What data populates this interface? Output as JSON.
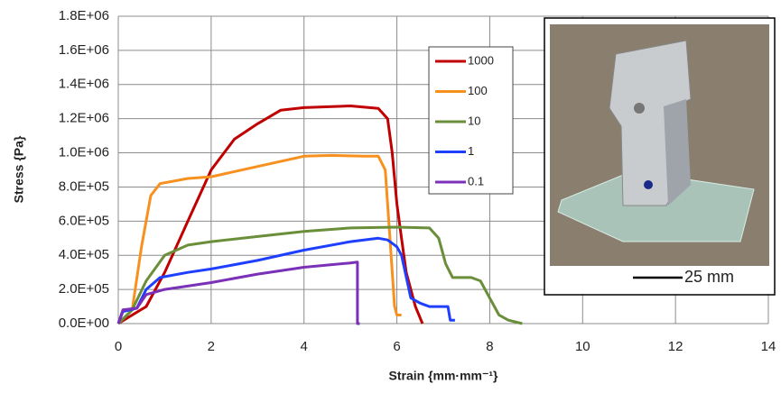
{
  "chart_data": {
    "type": "line",
    "x_label": "Strain {mm·mm⁻¹}",
    "y_label": "Stress {Pa}",
    "xlim": [
      0,
      14
    ],
    "xticks": [
      0,
      2,
      4,
      6,
      8,
      10,
      12,
      14
    ],
    "ylim": [
      0,
      1800000
    ],
    "yticks": [
      {
        "value": 0,
        "label": "0.0E+00"
      },
      {
        "value": 200000,
        "label": "2.0E+05"
      },
      {
        "value": 400000,
        "label": "4.0E+05"
      },
      {
        "value": 600000,
        "label": "6.0E+05"
      },
      {
        "value": 800000,
        "label": "8.0E+05"
      },
      {
        "value": 1000000,
        "label": "1.0E+06"
      },
      {
        "value": 1200000,
        "label": "1.2E+06"
      },
      {
        "value": 1400000,
        "label": "1.4E+06"
      },
      {
        "value": 1600000,
        "label": "1.6E+06"
      },
      {
        "value": 1800000,
        "label": "1.8E+06"
      }
    ],
    "grid": true,
    "legend": "upper center",
    "inset_scale_label": "25 mm",
    "series": [
      {
        "name": "1000",
        "color": "#c00000",
        "x": [
          0,
          0.3,
          0.6,
          1,
          1.5,
          2,
          2.5,
          3,
          3.5,
          4,
          5,
          5.6,
          5.8,
          5.9,
          6,
          6.1,
          6.2,
          6.4,
          6.55
        ],
        "values": [
          0,
          50000,
          100000,
          300000,
          600000,
          900000,
          1080000,
          1170000,
          1250000,
          1265000,
          1275000,
          1260000,
          1200000,
          1000000,
          700000,
          500000,
          300000,
          100000,
          0
        ]
      },
      {
        "name": "100",
        "color": "#f7901e",
        "x": [
          0,
          0.3,
          0.5,
          0.7,
          0.9,
          1.5,
          2,
          3,
          4,
          4.6,
          5.3,
          5.6,
          5.75,
          5.85,
          5.95,
          6,
          6.1
        ],
        "values": [
          0,
          80000,
          450000,
          750000,
          820000,
          850000,
          860000,
          920000,
          980000,
          985000,
          980000,
          980000,
          900000,
          500000,
          100000,
          50000,
          50000
        ]
      },
      {
        "name": "10",
        "color": "#6b8e3a",
        "x": [
          0,
          0.3,
          0.6,
          1,
          1.5,
          2,
          3,
          4,
          5,
          6,
          6.7,
          6.9,
          7.05,
          7.2,
          7.6,
          7.8,
          8,
          8.2,
          8.4,
          8.7
        ],
        "values": [
          0,
          80000,
          250000,
          400000,
          460000,
          480000,
          510000,
          540000,
          560000,
          565000,
          560000,
          500000,
          350000,
          270000,
          270000,
          250000,
          150000,
          50000,
          20000,
          0
        ]
      },
      {
        "name": "1",
        "color": "#1f3fff",
        "x": [
          0,
          0.1,
          0.4,
          0.6,
          0.9,
          1.5,
          2,
          3,
          4,
          5,
          5.6,
          5.8,
          6,
          6.1,
          6.3,
          6.5,
          6.7,
          7.1,
          7.15,
          7.25
        ],
        "values": [
          0,
          70000,
          90000,
          200000,
          270000,
          300000,
          320000,
          370000,
          430000,
          480000,
          500000,
          490000,
          450000,
          400000,
          150000,
          120000,
          100000,
          100000,
          20000,
          20000
        ]
      },
      {
        "name": "0.1",
        "color": "#7b30b8",
        "x": [
          0,
          0.1,
          0.4,
          0.6,
          1,
          2,
          3,
          4,
          5,
          5.15,
          5.15,
          5.2
        ],
        "values": [
          0,
          80000,
          90000,
          170000,
          200000,
          240000,
          290000,
          330000,
          355000,
          360000,
          0,
          0
        ]
      }
    ]
  }
}
